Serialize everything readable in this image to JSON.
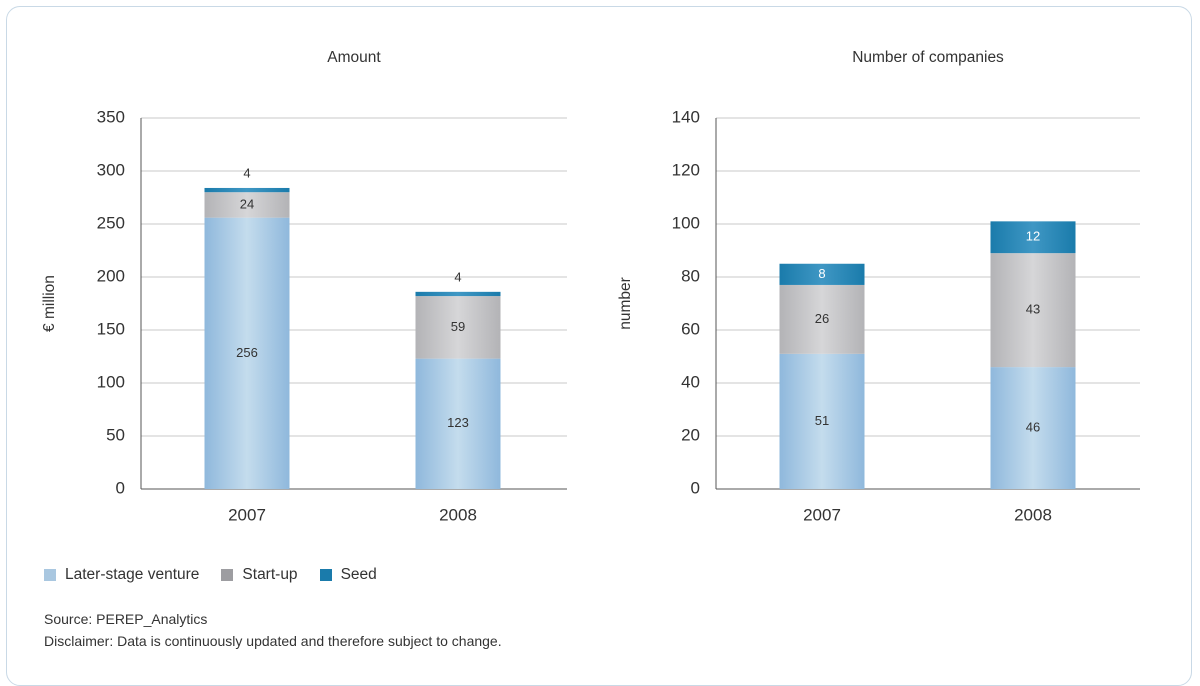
{
  "chart_data": [
    {
      "type": "bar",
      "stacked": true,
      "title": "Amount",
      "ylabel": "€ million",
      "xlabel": "",
      "categories": [
        "2007",
        "2008"
      ],
      "ylim": [
        0,
        350
      ],
      "yticks": [
        0,
        50,
        100,
        150,
        200,
        250,
        300,
        350
      ],
      "grid": true,
      "series": [
        {
          "name": "Later-stage venture",
          "values": [
            256,
            123
          ],
          "labels": [
            "256",
            "123"
          ]
        },
        {
          "name": "Start-up",
          "values": [
            24,
            59
          ],
          "labels": [
            "24",
            "59"
          ]
        },
        {
          "name": "Seed",
          "values": [
            4,
            4
          ],
          "labels": [
            "4",
            "4"
          ]
        }
      ]
    },
    {
      "type": "bar",
      "stacked": true,
      "title": "Number of companies",
      "ylabel": "number",
      "xlabel": "",
      "categories": [
        "2007",
        "2008"
      ],
      "ylim": [
        0,
        140
      ],
      "yticks": [
        0,
        20,
        40,
        60,
        80,
        100,
        120,
        140
      ],
      "grid": true,
      "series": [
        {
          "name": "Later-stage venture",
          "values": [
            51,
            46
          ],
          "labels": [
            "51",
            "46"
          ]
        },
        {
          "name": "Start-up",
          "values": [
            26,
            43
          ],
          "labels": [
            "26",
            "43"
          ]
        },
        {
          "name": "Seed",
          "values": [
            8,
            12
          ],
          "labels": [
            "8",
            "12"
          ]
        }
      ]
    }
  ],
  "legend": {
    "placement": "bottom-left",
    "items": [
      {
        "label": "Later-stage venture",
        "color": "#a9c7e0"
      },
      {
        "label": "Start-up",
        "color": "#9d9da1"
      },
      {
        "label": "Seed",
        "color": "#1a7bab"
      }
    ]
  },
  "colors": {
    "later_stage": "#8fb8dc",
    "start_up": "#b3b3b6",
    "seed": "#1a7bab",
    "grid": "#c8c8c8",
    "frame": "#c9d9e6"
  },
  "footer": {
    "source": "Source: PEREP_Analytics",
    "disclaimer": "Disclaimer: Data is continuously updated and therefore subject to change."
  }
}
